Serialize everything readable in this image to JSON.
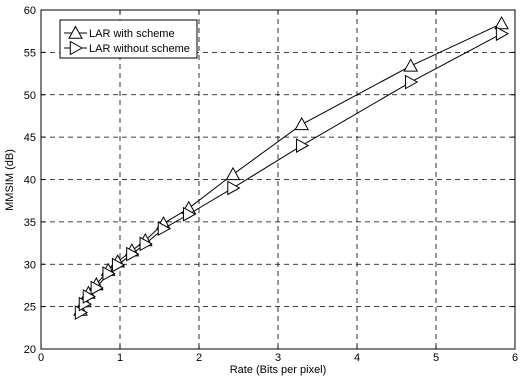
{
  "chart_data": {
    "type": "line",
    "title": "",
    "xlabel": "Rate (Bits per pixel)",
    "ylabel": "MMSIM (dB)",
    "xlim": [
      0,
      6
    ],
    "ylim": [
      20,
      60
    ],
    "xticks": [
      0,
      1,
      2,
      3,
      4,
      5,
      6
    ],
    "yticks": [
      20,
      25,
      30,
      35,
      40,
      45,
      50,
      55,
      60
    ],
    "grid": true,
    "grid_style": "dashed",
    "legend_position": "top-left",
    "series": [
      {
        "name": "LAR with scheme",
        "marker": "triangle-up",
        "color": "#000000",
        "x": [
          0.5,
          0.55,
          0.6,
          0.7,
          0.85,
          0.97,
          1.15,
          1.32,
          1.55,
          1.87,
          2.43,
          3.3,
          4.68,
          5.83
        ],
        "y": [
          24.6,
          25.6,
          26.6,
          27.6,
          29.3,
          30.3,
          31.6,
          32.8,
          34.8,
          36.6,
          40.6,
          46.5,
          53.4,
          58.4
        ]
      },
      {
        "name": "LAR without scheme",
        "marker": "triangle-right",
        "color": "#000000",
        "x": [
          0.5,
          0.55,
          0.6,
          0.7,
          0.85,
          0.97,
          1.15,
          1.32,
          1.55,
          1.87,
          2.43,
          3.3,
          4.68,
          5.83
        ],
        "y": [
          24.3,
          25.3,
          26.2,
          27.2,
          28.9,
          29.9,
          31.2,
          32.4,
          34.2,
          35.9,
          39.0,
          44.0,
          51.5,
          57.2
        ]
      }
    ]
  }
}
